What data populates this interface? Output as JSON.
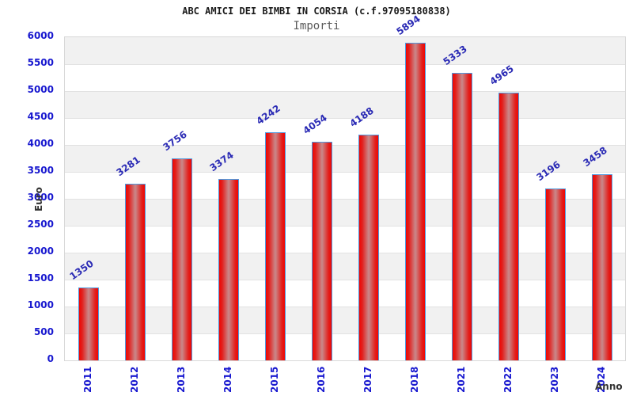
{
  "chart_data": {
    "type": "bar",
    "title": "ABC AMICI DEI BIMBI IN CORSIA (c.f.97095180838)",
    "subtitle": "Importi",
    "xlabel": "Anno",
    "ylabel": "Euro",
    "categories": [
      "2011",
      "2012",
      "2013",
      "2014",
      "2015",
      "2016",
      "2017",
      "2018",
      "2021",
      "2022",
      "2023",
      "2024"
    ],
    "values": [
      1350,
      3281,
      3756,
      3374,
      4242,
      4054,
      4188,
      5894,
      5333,
      4965,
      3196,
      3458
    ],
    "ylim": [
      0,
      6000
    ],
    "ytick_step": 500,
    "yticks": [
      0,
      500,
      1000,
      1500,
      2000,
      2500,
      3000,
      3500,
      4000,
      4500,
      5000,
      5500,
      6000
    ],
    "grid": true,
    "legend": "none",
    "band_style": "alternating horizontal bands, gray on top band",
    "colors": {
      "bar_edge": "#4f9ae0",
      "bar_fill_outer": "#ef0603",
      "bar_fill_mid": "#e2201d",
      "bar_fill_center": "#c9898b",
      "tick_label": "#1717cf",
      "value_label": "#2b2bb5",
      "band_gray": "#f1f1f1",
      "band_white": "#ffffff",
      "gridline": "#e2e2e2",
      "plot_border": "#d8d8d8",
      "title": "#1a1a1a",
      "subtitle": "#5a5a5a",
      "axis_title": "#333333"
    }
  }
}
